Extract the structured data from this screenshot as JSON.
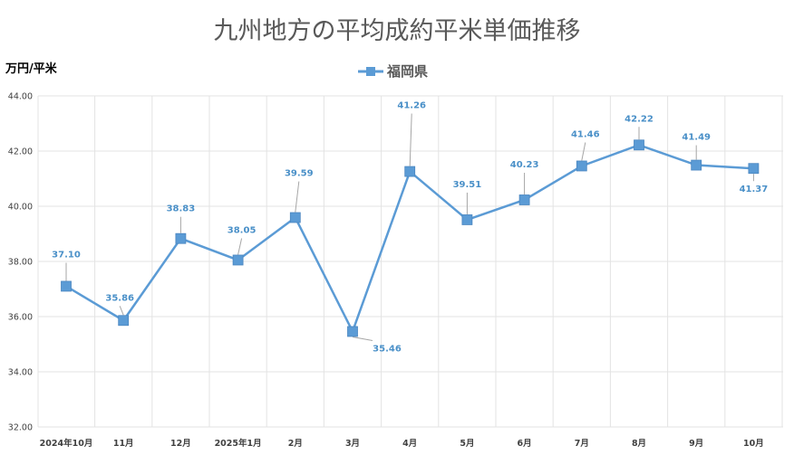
{
  "chart_data": {
    "type": "line",
    "title": "九州地方の平均成約平米単価推移",
    "ylabel": "万円/平米",
    "xlabel": "",
    "categories": [
      "2024年10月",
      "11月",
      "12月",
      "2025年1月",
      "2月",
      "3月",
      "4月",
      "5月",
      "6月",
      "7月",
      "8月",
      "9月",
      "10月"
    ],
    "series": [
      {
        "name": "福岡県",
        "values": [
          37.1,
          35.86,
          38.83,
          38.05,
          39.59,
          35.46,
          41.26,
          39.51,
          40.23,
          41.46,
          42.22,
          41.49,
          41.37
        ],
        "labels": [
          "37.10",
          "35.86",
          "38.83",
          "38.05",
          "39.59",
          "35.46",
          "41.26",
          "39.51",
          "40.23",
          "41.46",
          "42.22",
          "41.49",
          "41.37"
        ]
      }
    ],
    "ylim": [
      32,
      44
    ],
    "yticks": [
      "32.00",
      "34.00",
      "36.00",
      "38.00",
      "40.00",
      "42.00",
      "44.00"
    ],
    "legend_position": "top-center",
    "grid": true,
    "colors": {
      "series": "#5b9bd5",
      "label": "#4a90c8"
    }
  }
}
